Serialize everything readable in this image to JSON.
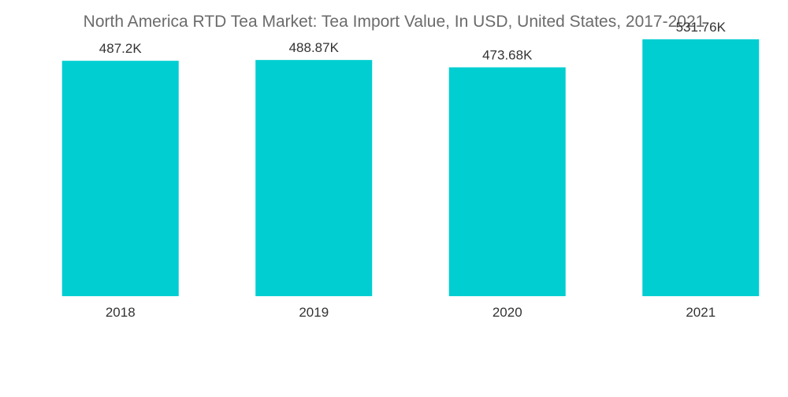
{
  "chart_data": {
    "type": "bar",
    "title": "North America RTD Tea Market: Tea Import Value, In USD, United States, 2017-2021",
    "xlabel": "",
    "ylabel": "",
    "categories": [
      "2018",
      "2019",
      "2020",
      "2021"
    ],
    "values": [
      487.2,
      488.87,
      473.68,
      531.76
    ],
    "value_labels": [
      "487.2K",
      "488.87K",
      "473.68K",
      "531.76K"
    ],
    "unit": "K",
    "ylim": [
      0,
      600
    ],
    "grid": false,
    "legend": "none",
    "colors": {
      "bar": "#00ced1",
      "text": "#333333",
      "title": "#6b6b6b"
    }
  }
}
